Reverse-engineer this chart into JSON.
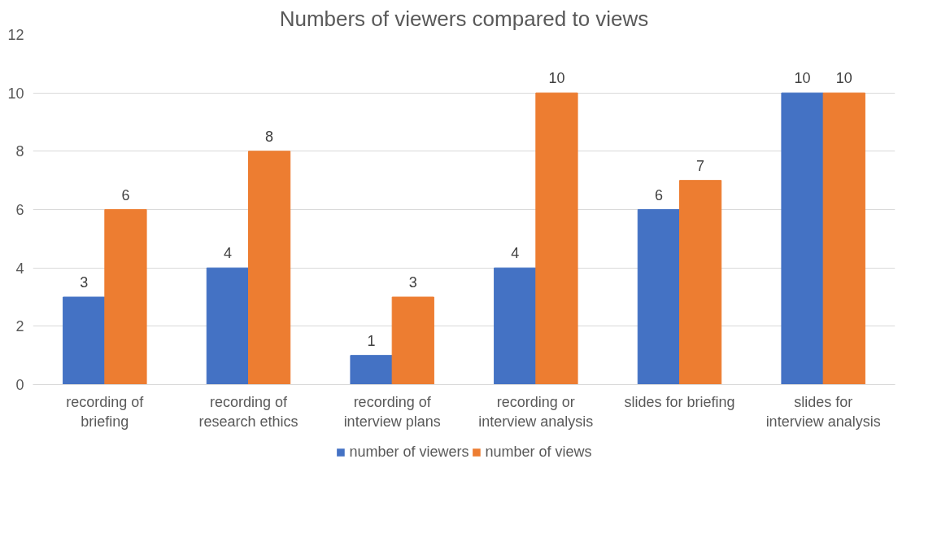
{
  "chart_data": {
    "type": "bar",
    "title": "Numbers of viewers compared to views",
    "categories": [
      "recording of briefing",
      "recording of research ethics",
      "recording of interview plans",
      "recording or interview analysis",
      "slides for briefing",
      "slides for interview analysis"
    ],
    "series": [
      {
        "name": "number of viewers",
        "color": "#4472c4",
        "values": [
          3,
          4,
          1,
          4,
          6,
          10
        ]
      },
      {
        "name": "number of views",
        "color": "#ed7d31",
        "values": [
          6,
          8,
          3,
          10,
          7,
          10
        ]
      }
    ],
    "ylim": [
      0,
      12
    ],
    "yticks": [
      0,
      2,
      4,
      6,
      8,
      10,
      12
    ],
    "grid": "y",
    "legend": "bottom",
    "data_labels": true
  }
}
